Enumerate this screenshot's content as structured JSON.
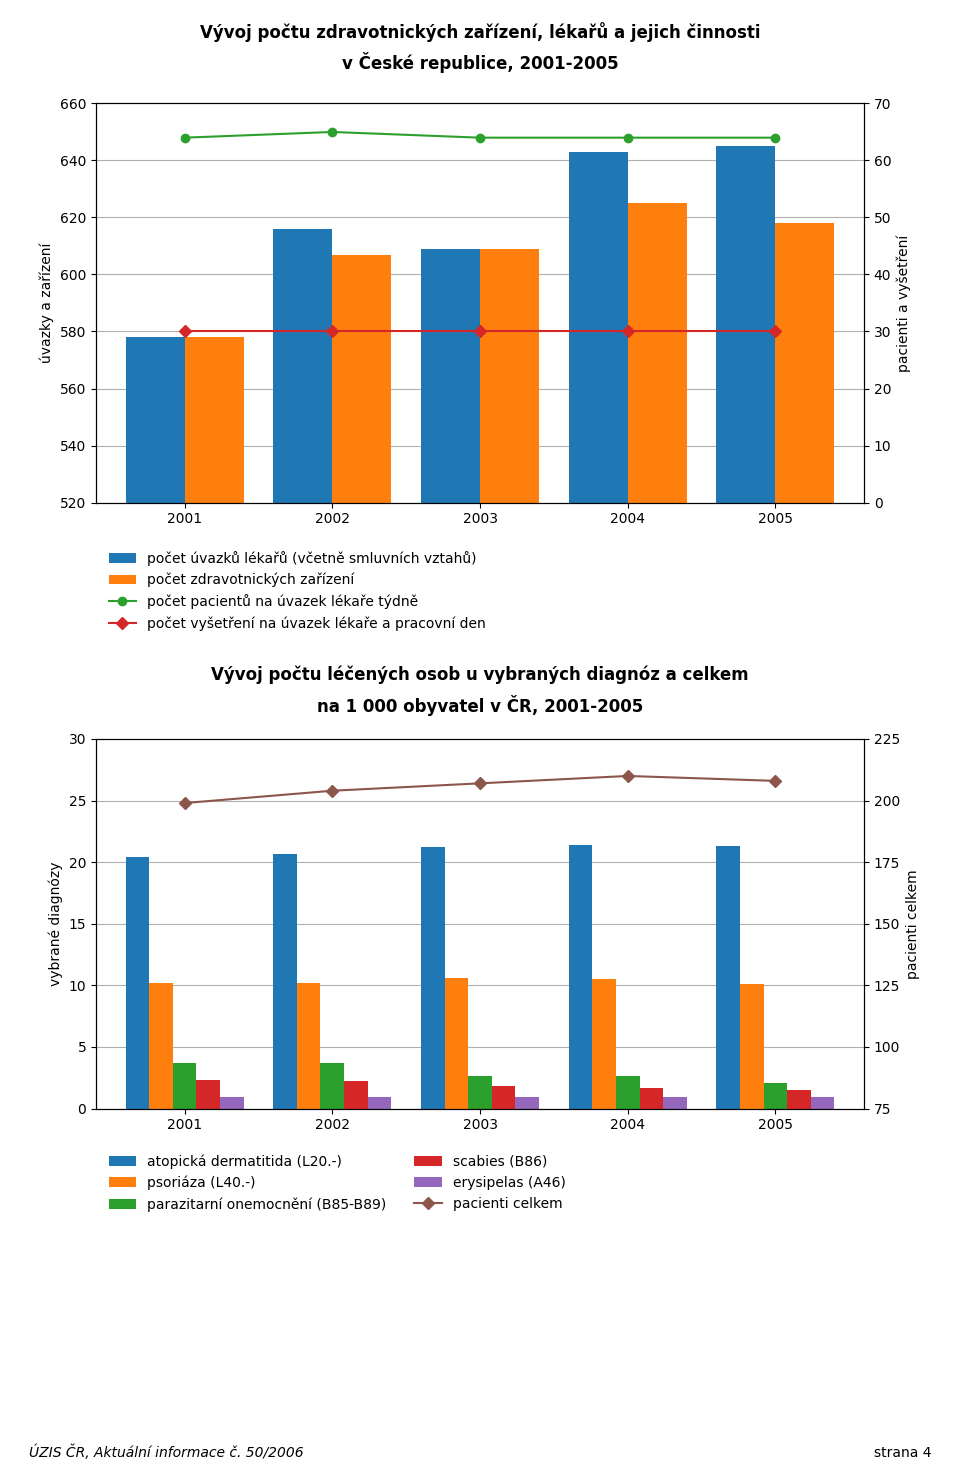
{
  "chart_data": [
    {
      "type": "bar",
      "title": "Vývoj počtu zdravotnických zařízení, lékařů a jejich činnosti",
      "subtitle": "v České republice, 2001-2005",
      "categories": [
        "2001",
        "2002",
        "2003",
        "2004",
        "2005"
      ],
      "ylabel": "úvazky a zařízení",
      "y2label": "pacienti a vyšetření",
      "series": [
        {
          "name": "počet úvazků lékařů (včetně smluvních vztahů)",
          "values": [
            578,
            616,
            609,
            643,
            645
          ]
        },
        {
          "name": "počet zdravotnických zařízení",
          "values": [
            578,
            607,
            609,
            625,
            618
          ]
        },
        {
          "name": "počet pacientů na úvazek lékaře týdně",
          "type": "line",
          "axis": "y2",
          "marker": "circle",
          "line_style": "solid",
          "values": [
            64,
            65,
            64,
            64,
            64
          ]
        },
        {
          "name": "počet vyšetření na úvazek lékaře a pracovní den",
          "type": "line",
          "axis": "y2",
          "marker": "diamond",
          "line_style": "solid",
          "values": [
            30,
            30,
            30,
            30,
            30
          ]
        }
      ],
      "ylim": [
        520,
        660
      ],
      "yticks": [
        520,
        540,
        560,
        580,
        600,
        620,
        640,
        660
      ],
      "y2lim": [
        0,
        70
      ],
      "y2ticks": [
        0,
        10,
        20,
        30,
        40,
        50,
        60,
        70
      ],
      "grid": true,
      "legend": "upper left"
    },
    {
      "type": "bar",
      "title": "Vývoj počtu léčených osob u vybraných diagnóz a celkem",
      "subtitle": "na 1 000 obyvatel v ČR, 2001-2005",
      "categories": [
        "2001",
        "2002",
        "2003",
        "2004",
        "2005"
      ],
      "ylabel": "vybrané diagnózy",
      "y2label": "pacienti celkem",
      "series": [
        {
          "name": "atopická dermatitida (L20.-)",
          "values": [
            20.4,
            20.7,
            21.2,
            21.4,
            21.3
          ]
        },
        {
          "name": "psoriáza (L40.-)",
          "values": [
            10.2,
            10.2,
            10.6,
            10.5,
            10.1
          ]
        },
        {
          "name": "parazitarní onemocnění (B85-B89)",
          "values": [
            3.7,
            3.7,
            2.6,
            2.6,
            2.1
          ]
        },
        {
          "name": "scabies (B86)",
          "values": [
            2.3,
            2.2,
            1.8,
            1.7,
            1.5
          ]
        },
        {
          "name": "erysipelas (A46)",
          "values": [
            0.9,
            0.9,
            0.9,
            0.9,
            0.9
          ]
        },
        {
          "name": "pacienti celkem",
          "type": "line",
          "axis": "y2",
          "marker": "diamond",
          "line_style": "solid",
          "values": [
            199,
            204,
            207,
            210,
            208
          ]
        }
      ],
      "ylim": [
        0,
        30
      ],
      "yticks": [
        0,
        5,
        10,
        15,
        20,
        25,
        30
      ],
      "y2lim": [
        75,
        225
      ],
      "y2ticks": [
        75,
        100,
        125,
        150,
        175,
        200,
        225
      ],
      "grid": true,
      "legend": "upper left",
      "annotations": [
        "ÚZIS ČR, Aktuální informace č. 50/2006",
        "strana 4"
      ]
    }
  ]
}
